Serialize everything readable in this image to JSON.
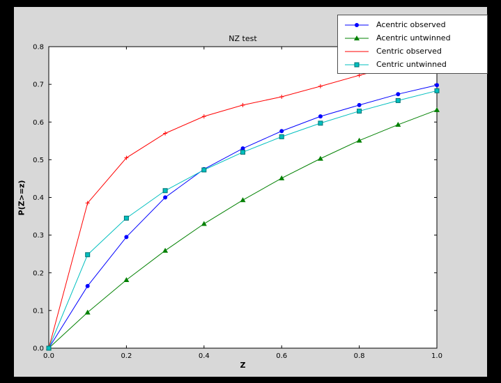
{
  "colors": {
    "window_background": "#000000",
    "figure_background": "#d8d8d8",
    "axes_background": "#ffffff",
    "axes_frame": "#000000"
  },
  "chart_data": {
    "type": "line",
    "title": "NZ test",
    "xlabel": "Z",
    "ylabel": "P(Z>=z)",
    "xlim": [
      0.0,
      1.0
    ],
    "ylim": [
      0.0,
      0.8
    ],
    "grid": false,
    "legend_position": "top-right",
    "x_ticks": [
      0.0,
      0.2,
      0.4,
      0.6,
      0.8,
      1.0
    ],
    "x_tick_labels": [
      "0.0",
      "0.2",
      "0.4",
      "0.6",
      "0.8",
      "1.0"
    ],
    "y_ticks": [
      0.0,
      0.1,
      0.2,
      0.3,
      0.4,
      0.5,
      0.6,
      0.7,
      0.8
    ],
    "y_tick_labels": [
      "0.0",
      "0.1",
      "0.2",
      "0.3",
      "0.4",
      "0.5",
      "0.6",
      "0.7",
      "0.8"
    ],
    "x": [
      0.0,
      0.1,
      0.2,
      0.3,
      0.4,
      0.5,
      0.6,
      0.7,
      0.8,
      0.9,
      1.0
    ],
    "series": [
      {
        "name": "Acentric observed",
        "color": "#0000ff",
        "marker": "circle",
        "values": [
          0.0,
          0.165,
          0.295,
          0.4,
          0.475,
          0.53,
          0.576,
          0.615,
          0.645,
          0.674,
          0.698
        ]
      },
      {
        "name": "Acentric untwinned",
        "color": "#008000",
        "marker": "triangle",
        "values": [
          0.0,
          0.095,
          0.181,
          0.259,
          0.33,
          0.393,
          0.451,
          0.503,
          0.551,
          0.593,
          0.632
        ]
      },
      {
        "name": "Centric observed",
        "color": "#ff0000",
        "marker": "plus",
        "values": [
          0.0,
          0.385,
          0.505,
          0.57,
          0.615,
          0.645,
          0.667,
          0.695,
          0.724,
          0.75,
          0.775
        ]
      },
      {
        "name": "Centric untwinned",
        "color": "#00bfbf",
        "marker": "square",
        "edge": "#007070",
        "values": [
          0.0,
          0.248,
          0.345,
          0.418,
          0.473,
          0.52,
          0.561,
          0.597,
          0.629,
          0.657,
          0.683
        ]
      }
    ]
  }
}
